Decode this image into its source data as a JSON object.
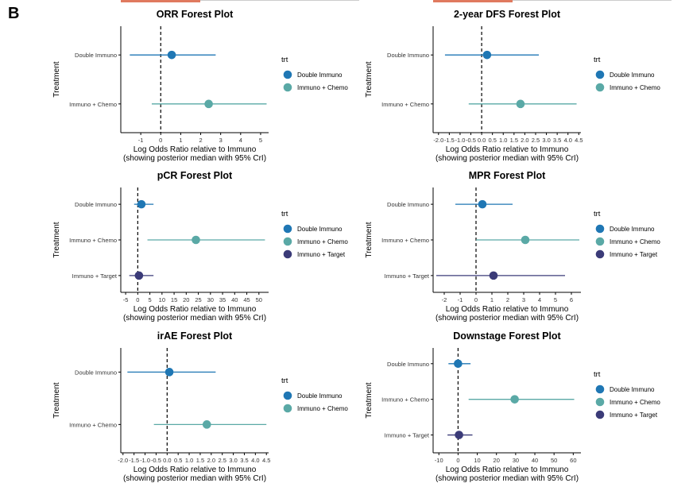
{
  "panel_label": "B",
  "colors": {
    "Double Immuno": "#1f77b4",
    "Immuno + Chemo": "#5aa9a6",
    "Immuno + Target": "#3b3b78",
    "axis": "#000000",
    "tick_text": "#333333"
  },
  "chart_data": [
    {
      "id": "orr",
      "type": "forest",
      "title": "ORR Forest Plot",
      "xlabel": "Log Odds Ratio relative to Immuno",
      "xlabel2": "(showing posterior median with 95% CrI)",
      "ylabel": "Treatment",
      "legend_title": "trt",
      "xlim": [
        -2.0,
        5.4
      ],
      "xticks": [
        -1,
        0,
        1,
        2,
        3,
        4,
        5
      ],
      "reference_line": 0,
      "categories": [
        "Double Immuno",
        "Immuno + Chemo"
      ],
      "series": [
        {
          "name": "Double Immuno",
          "median": 0.55,
          "lower": -1.55,
          "upper": 2.75
        },
        {
          "name": "Immuno + Chemo",
          "median": 2.4,
          "lower": -0.45,
          "upper": 5.3
        }
      ]
    },
    {
      "id": "dfs",
      "type": "forest",
      "title": "2-year DFS Forest Plot",
      "xlabel": "Log Odds Ratio relative to Immuno",
      "xlabel2": "(showing posterior median with 95% CrI)",
      "ylabel": "Treatment",
      "legend_title": "trt",
      "xlim": [
        -2.25,
        4.6
      ],
      "xticks": [
        -2.0,
        -1.5,
        -1.0,
        -0.5,
        0.0,
        0.5,
        1.0,
        1.5,
        2.0,
        2.5,
        3.0,
        3.5,
        4.0,
        4.5
      ],
      "xticklabels": [
        "-2.0",
        "-1.5",
        "-1.0",
        "-0.5",
        "0.0",
        "0.5",
        "1.0",
        "1.5",
        "2.0",
        "2.5",
        "3.0",
        "3.5",
        "4.0",
        "4.5"
      ],
      "reference_line": 0,
      "categories": [
        "Double Immuno",
        "Immuno + Chemo"
      ],
      "series": [
        {
          "name": "Double Immuno",
          "median": 0.25,
          "lower": -1.7,
          "upper": 2.65
        },
        {
          "name": "Immuno + Chemo",
          "median": 1.8,
          "lower": -0.6,
          "upper": 4.4
        }
      ]
    },
    {
      "id": "pcr",
      "type": "forest",
      "title": "pCR Forest Plot",
      "xlabel": "Log Odds Ratio relative to Immuno",
      "xlabel2": "(showing posterior median with 95% CrI)",
      "ylabel": "Treatment",
      "legend_title": "trt",
      "xlim": [
        -7,
        54
      ],
      "xticks": [
        -5,
        0,
        5,
        10,
        15,
        20,
        25,
        30,
        35,
        40,
        45,
        50
      ],
      "reference_line": 0,
      "categories": [
        "Double Immuno",
        "Immuno + Chemo",
        "Immuno + Target"
      ],
      "series": [
        {
          "name": "Double Immuno",
          "median": 1.5,
          "lower": -1.5,
          "upper": 6.5
        },
        {
          "name": "Immuno + Chemo",
          "median": 24.0,
          "lower": 4.0,
          "upper": 52.5
        },
        {
          "name": "Immuno + Target",
          "median": 0.5,
          "lower": -3.5,
          "upper": 6.5
        }
      ]
    },
    {
      "id": "mpr",
      "type": "forest",
      "title": "MPR Forest Plot",
      "xlabel": "Log Odds Ratio relative to Immuno",
      "xlabel2": "(showing posterior median with 95% CrI)",
      "ylabel": "Treatment",
      "legend_title": "trt",
      "xlim": [
        -2.7,
        6.6
      ],
      "xticks": [
        -2,
        -1,
        0,
        1,
        2,
        3,
        4,
        5,
        6
      ],
      "reference_line": 0,
      "categories": [
        "Double Immuno",
        "Immuno + Chemo",
        "Immuno + Target"
      ],
      "series": [
        {
          "name": "Double Immuno",
          "median": 0.4,
          "lower": -1.3,
          "upper": 2.3
        },
        {
          "name": "Immuno + Chemo",
          "median": 3.1,
          "lower": 0.0,
          "upper": 6.5
        },
        {
          "name": "Immuno + Target",
          "median": 1.1,
          "lower": -2.5,
          "upper": 5.6
        }
      ]
    },
    {
      "id": "irae",
      "type": "forest",
      "title": "irAE Forest Plot",
      "xlabel": "Log Odds Ratio relative to Immuno",
      "xlabel2": "(showing posterior median with 95% CrI)",
      "ylabel": "Treatment",
      "legend_title": "trt",
      "xlim": [
        -2.1,
        4.6
      ],
      "xticks": [
        -2.0,
        -1.5,
        -1.0,
        -0.5,
        0.0,
        0.5,
        1.0,
        1.5,
        2.0,
        2.5,
        3.0,
        3.5,
        4.0,
        4.5
      ],
      "xticklabels": [
        "-2.0",
        "-1.5",
        "-1.0",
        "-0.5",
        "0.0",
        "0.5",
        "1.0",
        "1.5",
        "2.0",
        "2.5",
        "3.0",
        "3.5",
        "4.0",
        "4.5"
      ],
      "reference_line": 0,
      "categories": [
        "Double Immuno",
        "Immuno + Chemo"
      ],
      "series": [
        {
          "name": "Double Immuno",
          "median": 0.1,
          "lower": -1.8,
          "upper": 2.2
        },
        {
          "name": "Immuno + Chemo",
          "median": 1.8,
          "lower": -0.6,
          "upper": 4.5
        }
      ]
    },
    {
      "id": "downstage",
      "type": "forest",
      "title": "Downstage Forest Plot",
      "xlabel": "Log Odds Ratio relative to Immuno",
      "xlabel2": "(showing posterior median with 95% CrI)",
      "ylabel": "Treatment",
      "legend_title": "trt",
      "xlim": [
        -13,
        64
      ],
      "xticks": [
        -10,
        0,
        10,
        20,
        30,
        40,
        50,
        60
      ],
      "reference_line": 0,
      "categories": [
        "Double Immuno",
        "Immuno + Chemo",
        "Immuno + Target"
      ],
      "series": [
        {
          "name": "Double Immuno",
          "median": 0.0,
          "lower": -5.0,
          "upper": 6.5
        },
        {
          "name": "Immuno + Chemo",
          "median": 29.5,
          "lower": 5.5,
          "upper": 60.5
        },
        {
          "name": "Immuno + Target",
          "median": 0.5,
          "lower": -5.5,
          "upper": 7.5
        }
      ]
    }
  ]
}
